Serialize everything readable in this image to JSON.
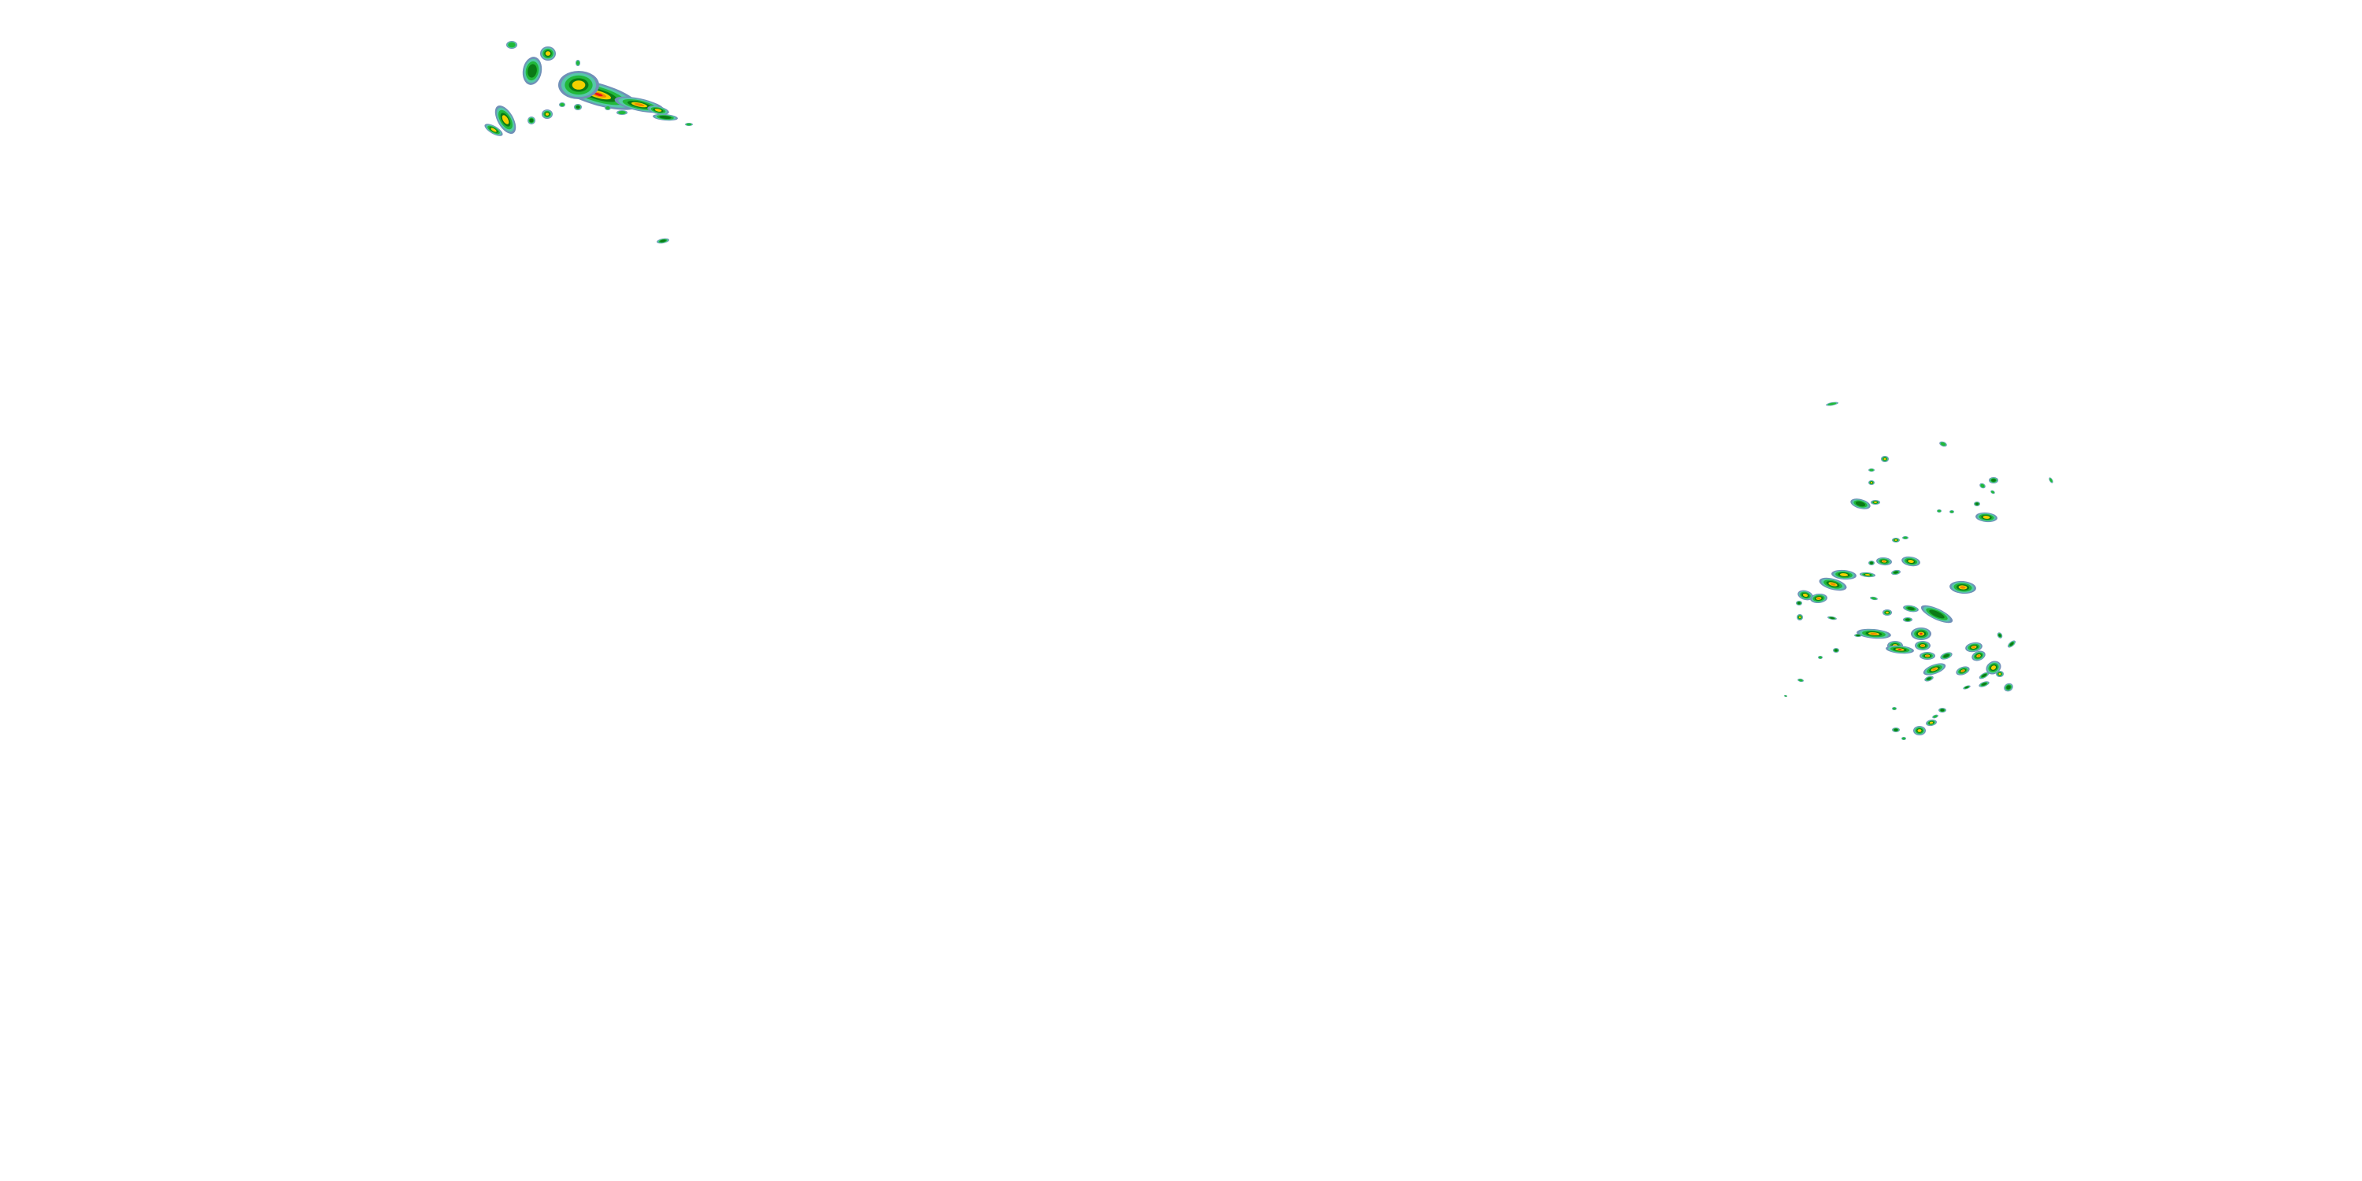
{
  "map": {
    "layer": "radar-reflectivity",
    "background_color": "#ffffff",
    "palette": {
      "very_light": "#7090b8",
      "light": "#56c8a8",
      "moderate": "#22b83a",
      "moderate_strong": "#0b7a16",
      "heavy": "#f4d000",
      "very_heavy": "#f08c00",
      "intense": "#e8141c"
    },
    "regions": [
      "northwest-storm-cluster",
      "east-scattered-cells"
    ]
  }
}
